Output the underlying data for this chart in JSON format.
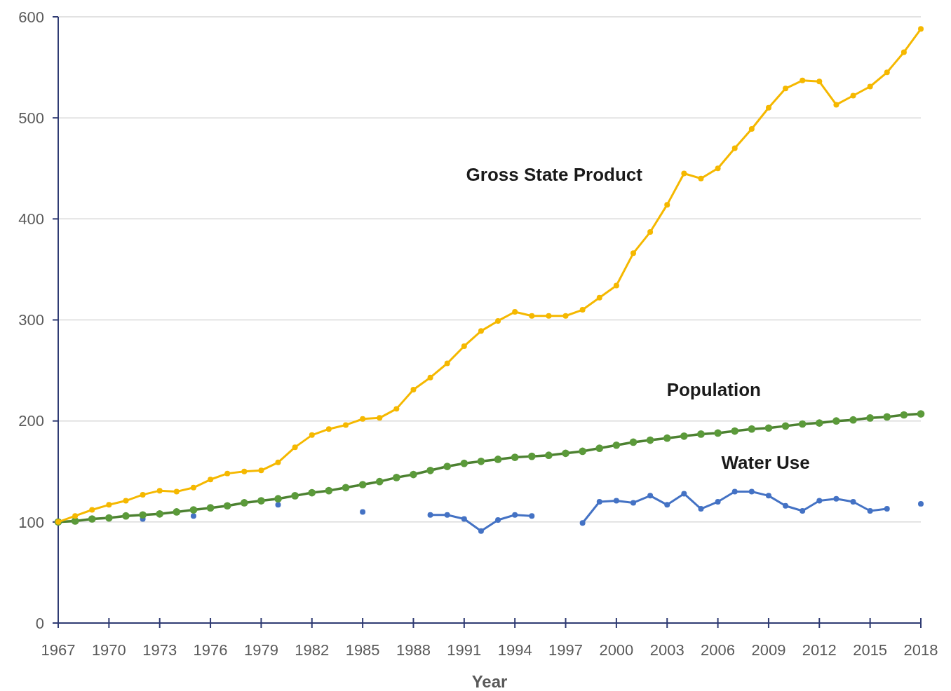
{
  "chart_data": {
    "type": "line",
    "xlabel": "Year",
    "x": [
      1967,
      1968,
      1969,
      1970,
      1971,
      1972,
      1973,
      1974,
      1975,
      1976,
      1977,
      1978,
      1979,
      1980,
      1981,
      1982,
      1983,
      1984,
      1985,
      1986,
      1987,
      1988,
      1989,
      1990,
      1991,
      1992,
      1993,
      1994,
      1995,
      1996,
      1997,
      1998,
      1999,
      2000,
      2001,
      2002,
      2003,
      2004,
      2005,
      2006,
      2007,
      2008,
      2009,
      2010,
      2011,
      2012,
      2013,
      2014,
      2015,
      2016,
      2017,
      2018
    ],
    "series": [
      {
        "name": "Gross State Product",
        "color": "#f5b800",
        "values": [
          100,
          106,
          112,
          117,
          121,
          127,
          131,
          130,
          134,
          142,
          148,
          150,
          151,
          159,
          174,
          186,
          192,
          196,
          202,
          203,
          212,
          231,
          243,
          257,
          274,
          289,
          299,
          308,
          304,
          304,
          304,
          310,
          322,
          334,
          366,
          387,
          414,
          445,
          440,
          450,
          470,
          489,
          510,
          529,
          537,
          536,
          513,
          522,
          531,
          545,
          565,
          588
        ]
      },
      {
        "name": "Population",
        "color": "#5b9a3a",
        "values": [
          100,
          101,
          103,
          104,
          106,
          107,
          108,
          110,
          112,
          114,
          116,
          119,
          121,
          123,
          126,
          129,
          131,
          134,
          137,
          140,
          144,
          147,
          151,
          155,
          158,
          160,
          162,
          164,
          165,
          166,
          168,
          170,
          173,
          176,
          179,
          181,
          183,
          185,
          187,
          188,
          190,
          192,
          193,
          195,
          197,
          198,
          200,
          201,
          203,
          204,
          206,
          207
        ]
      },
      {
        "name": "Water Use",
        "color": "#4472c4",
        "values": [
          null,
          null,
          null,
          null,
          null,
          103,
          null,
          null,
          106,
          null,
          null,
          null,
          null,
          117,
          null,
          null,
          null,
          null,
          110,
          null,
          null,
          null,
          107,
          107,
          103,
          91,
          102,
          107,
          106,
          null,
          null,
          99,
          120,
          121,
          119,
          126,
          117,
          128,
          113,
          120,
          130,
          130,
          126,
          116,
          111,
          121,
          123,
          120,
          111,
          113,
          null,
          118
        ]
      }
    ],
    "xlim": [
      1967,
      2018
    ],
    "xticks": [
      1967,
      1970,
      1973,
      1976,
      1979,
      1982,
      1985,
      1988,
      1991,
      1994,
      1997,
      2000,
      2003,
      2006,
      2009,
      2012,
      2015,
      2018
    ],
    "ylim": [
      0,
      600
    ],
    "yticks": [
      0,
      100,
      200,
      300,
      400,
      500,
      600
    ],
    "grid": "y",
    "marker": "circle",
    "line_style": "solid"
  }
}
